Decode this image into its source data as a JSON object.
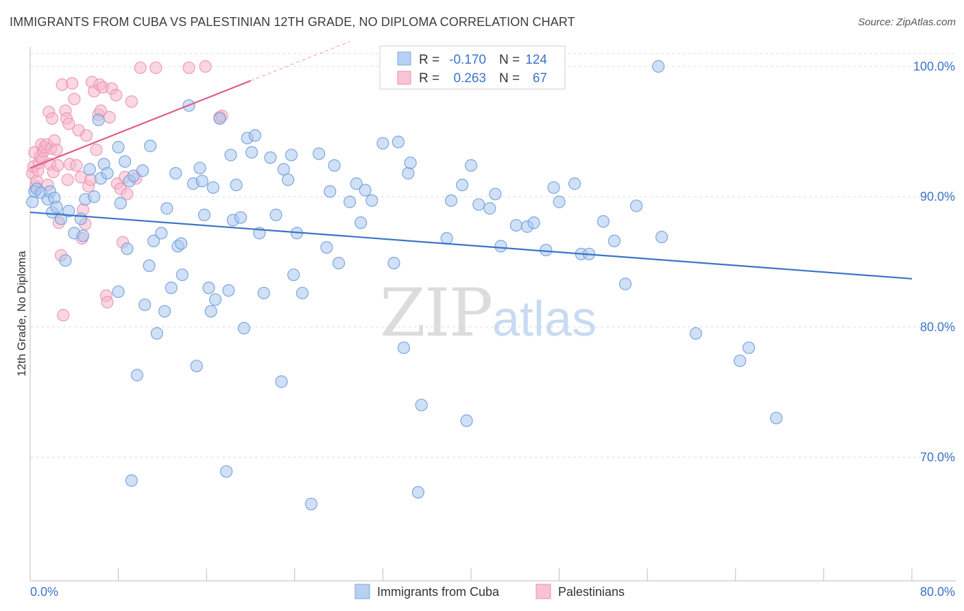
{
  "title": "IMMIGRANTS FROM CUBA VS PALESTINIAN 12TH GRADE, NO DIPLOMA CORRELATION CHART",
  "source": "Source: ZipAtlas.com",
  "watermark": {
    "zip": "ZIP",
    "atlas": "atlas"
  },
  "colors": {
    "blue": "#3b73c8",
    "blue_fill": "#a9c6ee",
    "pink": "#e05b8a",
    "pink_fill": "#f6b6cb",
    "grid": "#dcdcdc",
    "axis_text": "#3b73c8"
  },
  "legend": {
    "rows": [
      {
        "r_label": "R =",
        "r_value": "-0.170",
        "n_label": "N =",
        "n_value": "124"
      },
      {
        "r_label": "R =",
        "r_value": "0.263",
        "n_label": "N =",
        "n_value": "67"
      }
    ]
  },
  "bottom_legend": [
    "Immigrants from Cuba",
    "Palestinians"
  ],
  "chart_data": {
    "type": "scatter",
    "title": "IMMIGRANTS FROM CUBA VS PALESTINIAN 12TH GRADE, NO DIPLOMA CORRELATION CHART",
    "xlabel": "",
    "ylabel": "12th Grade, No Diploma",
    "xlim": [
      0,
      80
    ],
    "ylim": [
      60.5,
      101
    ],
    "x_tick_labels": [
      "0.0%",
      "80.0%"
    ],
    "y_ticks": [
      70,
      80,
      90,
      100
    ],
    "y_tick_labels": [
      "70.0%",
      "80.0%",
      "90.0%",
      "100.0%"
    ],
    "grid": true,
    "legend_placement": "top-center",
    "series": [
      {
        "name": "Immigrants from Cuba",
        "color": "#3b73c8",
        "r": -0.17,
        "n": 124,
        "trend": {
          "x": [
            0,
            80
          ],
          "y": [
            88.8,
            83.7
          ]
        },
        "points": [
          [
            0.2,
            89.6
          ],
          [
            0.4,
            90.4
          ],
          [
            0.6,
            90.6
          ],
          [
            1.0,
            90.3
          ],
          [
            1.6,
            89.8
          ],
          [
            1.8,
            90.4
          ],
          [
            2.0,
            88.8
          ],
          [
            2.2,
            89.9
          ],
          [
            2.4,
            89.2
          ],
          [
            2.8,
            88.3
          ],
          [
            3.2,
            85.1
          ],
          [
            3.5,
            88.9
          ],
          [
            4.0,
            87.2
          ],
          [
            4.6,
            88.3
          ],
          [
            4.8,
            87.0
          ],
          [
            5.0,
            89.8
          ],
          [
            5.4,
            92.1
          ],
          [
            5.8,
            90.0
          ],
          [
            6.2,
            95.9
          ],
          [
            6.4,
            91.4
          ],
          [
            6.7,
            92.5
          ],
          [
            7.0,
            91.8
          ],
          [
            8.0,
            82.7
          ],
          [
            8.0,
            93.8
          ],
          [
            8.2,
            89.5
          ],
          [
            8.6,
            92.7
          ],
          [
            8.8,
            86.0
          ],
          [
            9.0,
            91.2
          ],
          [
            9.2,
            68.2
          ],
          [
            9.4,
            91.6
          ],
          [
            9.7,
            76.3
          ],
          [
            10.2,
            92.0
          ],
          [
            10.4,
            81.7
          ],
          [
            10.8,
            84.7
          ],
          [
            10.9,
            93.9
          ],
          [
            11.2,
            86.6
          ],
          [
            11.5,
            79.5
          ],
          [
            11.9,
            87.2
          ],
          [
            12.2,
            81.2
          ],
          [
            12.4,
            89.1
          ],
          [
            12.8,
            83.0
          ],
          [
            13.2,
            91.8
          ],
          [
            13.4,
            86.2
          ],
          [
            13.7,
            86.4
          ],
          [
            13.8,
            84.0
          ],
          [
            14.4,
            97.0
          ],
          [
            14.8,
            91.0
          ],
          [
            15.1,
            77.0
          ],
          [
            15.4,
            92.2
          ],
          [
            15.6,
            91.2
          ],
          [
            15.8,
            88.6
          ],
          [
            16.2,
            83.0
          ],
          [
            16.4,
            81.2
          ],
          [
            16.6,
            90.7
          ],
          [
            16.8,
            82.1
          ],
          [
            17.2,
            96.0
          ],
          [
            17.8,
            68.9
          ],
          [
            18.0,
            82.8
          ],
          [
            18.2,
            93.2
          ],
          [
            18.4,
            88.2
          ],
          [
            18.7,
            90.9
          ],
          [
            19.1,
            88.4
          ],
          [
            19.4,
            79.9
          ],
          [
            19.7,
            94.5
          ],
          [
            20.1,
            93.4
          ],
          [
            20.4,
            94.7
          ],
          [
            20.8,
            87.2
          ],
          [
            21.2,
            82.6
          ],
          [
            21.8,
            93.0
          ],
          [
            22.3,
            88.6
          ],
          [
            22.8,
            75.8
          ],
          [
            23.0,
            92.1
          ],
          [
            23.4,
            91.3
          ],
          [
            23.7,
            93.2
          ],
          [
            23.9,
            84.0
          ],
          [
            24.2,
            87.2
          ],
          [
            24.7,
            82.6
          ],
          [
            25.5,
            66.4
          ],
          [
            26.2,
            93.3
          ],
          [
            26.9,
            86.1
          ],
          [
            27.2,
            90.4
          ],
          [
            27.6,
            92.4
          ],
          [
            28.0,
            84.9
          ],
          [
            29.0,
            89.6
          ],
          [
            29.6,
            91.0
          ],
          [
            30.0,
            88.0
          ],
          [
            30.4,
            90.5
          ],
          [
            31.0,
            89.7
          ],
          [
            32.0,
            94.1
          ],
          [
            33.0,
            84.9
          ],
          [
            33.4,
            94.2
          ],
          [
            33.9,
            78.4
          ],
          [
            34.3,
            91.8
          ],
          [
            34.5,
            92.6
          ],
          [
            35.2,
            67.3
          ],
          [
            35.5,
            74.0
          ],
          [
            37.8,
            86.8
          ],
          [
            38.2,
            89.7
          ],
          [
            39.2,
            90.9
          ],
          [
            39.6,
            72.8
          ],
          [
            40.0,
            92.4
          ],
          [
            40.7,
            89.4
          ],
          [
            41.7,
            89.1
          ],
          [
            42.2,
            90.2
          ],
          [
            42.7,
            86.2
          ],
          [
            44.1,
            87.8
          ],
          [
            45.1,
            87.7
          ],
          [
            45.7,
            88.0
          ],
          [
            46.8,
            85.9
          ],
          [
            47.5,
            90.7
          ],
          [
            48.0,
            89.6
          ],
          [
            49.4,
            91.0
          ],
          [
            50.0,
            85.6
          ],
          [
            50.7,
            85.6
          ],
          [
            52.0,
            88.1
          ],
          [
            53.0,
            86.6
          ],
          [
            54.0,
            83.3
          ],
          [
            55.0,
            89.3
          ],
          [
            57.0,
            100.0
          ],
          [
            57.3,
            86.9
          ],
          [
            60.4,
            79.5
          ],
          [
            64.4,
            77.4
          ],
          [
            65.2,
            78.4
          ],
          [
            67.7,
            73.0
          ]
        ]
      },
      {
        "name": "Palestinians",
        "color": "#e05b8a",
        "r": 0.263,
        "n": 67,
        "trend": {
          "x": [
            0,
            20
          ],
          "y": [
            92.2,
            98.9
          ]
        },
        "points": [
          [
            0.2,
            91.8
          ],
          [
            0.3,
            92.3
          ],
          [
            0.4,
            93.4
          ],
          [
            0.5,
            90.8
          ],
          [
            0.6,
            91.2
          ],
          [
            0.7,
            92.0
          ],
          [
            0.8,
            92.6
          ],
          [
            0.9,
            93.1
          ],
          [
            1.0,
            94.0
          ],
          [
            1.1,
            92.9
          ],
          [
            1.2,
            93.5
          ],
          [
            1.3,
            93.8
          ],
          [
            1.5,
            94.0
          ],
          [
            1.6,
            90.9
          ],
          [
            1.7,
            96.5
          ],
          [
            1.8,
            92.5
          ],
          [
            1.9,
            93.7
          ],
          [
            2.0,
            96.0
          ],
          [
            2.1,
            91.9
          ],
          [
            2.2,
            94.3
          ],
          [
            2.4,
            93.6
          ],
          [
            2.5,
            92.4
          ],
          [
            2.6,
            88.0
          ],
          [
            2.8,
            85.5
          ],
          [
            2.9,
            98.6
          ],
          [
            3.0,
            80.9
          ],
          [
            3.2,
            96.6
          ],
          [
            3.3,
            96.0
          ],
          [
            3.4,
            91.3
          ],
          [
            3.5,
            95.6
          ],
          [
            3.6,
            92.5
          ],
          [
            3.8,
            98.7
          ],
          [
            4.0,
            97.5
          ],
          [
            4.2,
            92.4
          ],
          [
            4.4,
            95.1
          ],
          [
            4.6,
            91.5
          ],
          [
            4.7,
            86.8
          ],
          [
            4.8,
            89.0
          ],
          [
            5.0,
            87.9
          ],
          [
            5.1,
            94.7
          ],
          [
            5.3,
            90.8
          ],
          [
            5.5,
            91.3
          ],
          [
            5.6,
            98.8
          ],
          [
            5.8,
            98.1
          ],
          [
            6.0,
            93.6
          ],
          [
            6.2,
            96.3
          ],
          [
            6.3,
            98.6
          ],
          [
            6.4,
            96.6
          ],
          [
            6.6,
            98.4
          ],
          [
            6.9,
            82.4
          ],
          [
            7.0,
            81.9
          ],
          [
            7.2,
            96.1
          ],
          [
            7.4,
            98.3
          ],
          [
            7.8,
            97.8
          ],
          [
            7.9,
            91.0
          ],
          [
            8.2,
            90.6
          ],
          [
            8.4,
            86.5
          ],
          [
            8.6,
            91.5
          ],
          [
            8.8,
            90.2
          ],
          [
            9.2,
            97.3
          ],
          [
            9.6,
            91.4
          ],
          [
            10.0,
            99.9
          ],
          [
            11.4,
            99.9
          ],
          [
            14.4,
            99.9
          ],
          [
            15.9,
            100.0
          ],
          [
            17.2,
            96.1
          ],
          [
            17.4,
            96.2
          ]
        ]
      }
    ]
  }
}
